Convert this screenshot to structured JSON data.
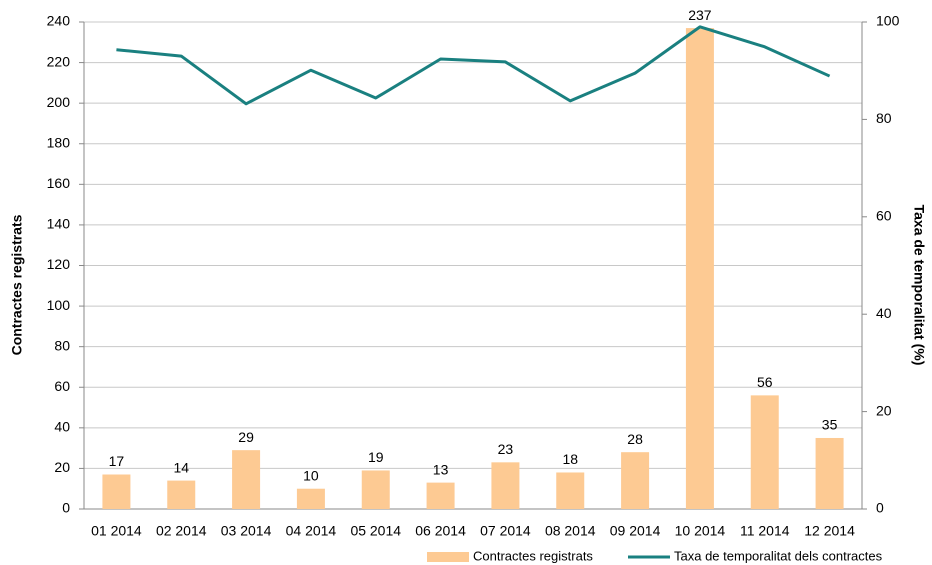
{
  "chart_data": {
    "type": "bar",
    "categories": [
      "01 2014",
      "02 2014",
      "03 2014",
      "04 2014",
      "05 2014",
      "06 2014",
      "07 2014",
      "08 2014",
      "09 2014",
      "10 2014",
      "11 2014",
      "12 2014"
    ],
    "series": [
      {
        "name": "Contractes registrats",
        "type": "bar",
        "color": "#fdca93",
        "values": [
          17,
          14,
          29,
          10,
          19,
          13,
          23,
          18,
          28,
          237,
          56,
          35
        ]
      },
      {
        "name": "Taxa de temporalitat dels contractes",
        "type": "line",
        "axis": "y2",
        "color": "#1a8080",
        "values": [
          94.3,
          93.0,
          83.2,
          90.1,
          84.4,
          92.4,
          91.8,
          83.8,
          89.5,
          99.0,
          94.9,
          88.9
        ]
      }
    ],
    "ylabel": "Contractes registrats",
    "y2label": "Taxa de temporalitat (%)",
    "ylim": [
      0,
      240
    ],
    "yticks": [
      0,
      20,
      40,
      60,
      80,
      100,
      120,
      140,
      160,
      180,
      200,
      220,
      240
    ],
    "y2lim": [
      0,
      100
    ],
    "y2ticks": [
      0,
      20,
      40,
      60,
      80,
      100
    ],
    "grid": true,
    "legend": "bottom"
  }
}
